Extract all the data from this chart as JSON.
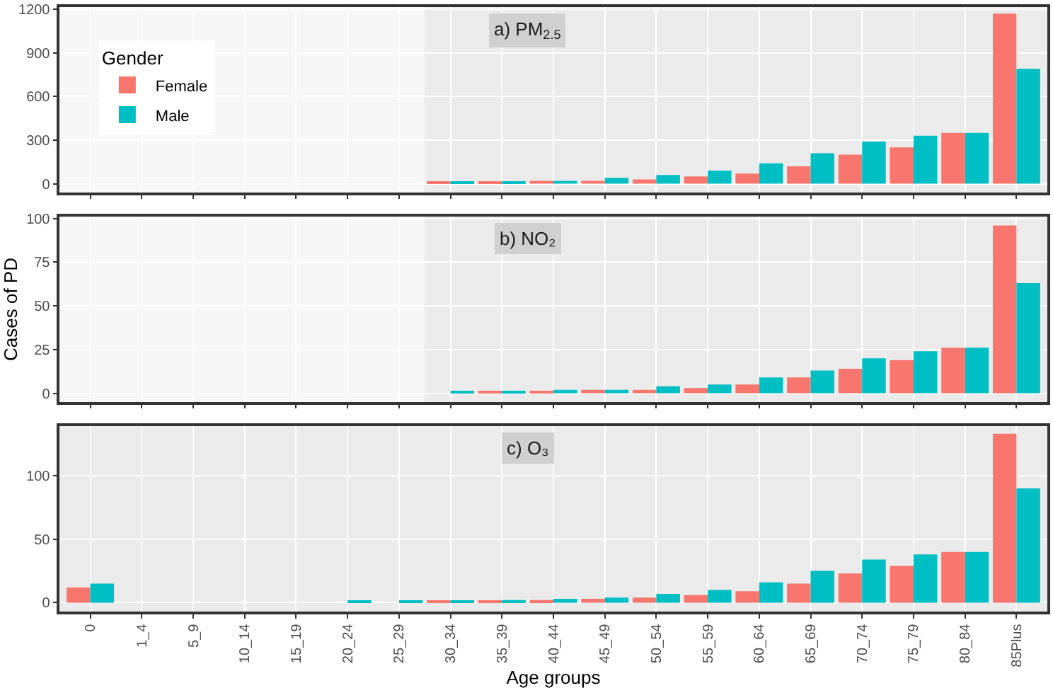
{
  "chart_data": [
    {
      "type": "bar",
      "title": "a) PM$_{2.5}$",
      "categories": [
        "0",
        "1_4",
        "5_9",
        "10_14",
        "15_19",
        "20_24",
        "25_29",
        "30_34",
        "35_39",
        "40_44",
        "45_49",
        "50_54",
        "55_59",
        "60_64",
        "65_69",
        "70_74",
        "75_79",
        "80_84",
        "85Plus"
      ],
      "legend_title": "Gender",
      "legend": "left",
      "grid": true,
      "tick_labels": "y",
      "ylim": [
        -60,
        1215
      ],
      "yticks": [
        0,
        300,
        600,
        900,
        1200
      ],
      "bands": [
        {
          "axis": "x",
          "from": "0",
          "to": "25_29",
          "color": "#f7f7f7"
        }
      ],
      "series": [
        {
          "name": "Female",
          "color": "#f8766d",
          "values": [
            null,
            null,
            null,
            null,
            null,
            null,
            null,
            10,
            10,
            20,
            20,
            30,
            50,
            70,
            120,
            200,
            250,
            350,
            1170
          ]
        },
        {
          "name": "Male",
          "color": "#00bfc4",
          "values": [
            null,
            null,
            null,
            null,
            null,
            null,
            null,
            10,
            10,
            20,
            40,
            60,
            90,
            140,
            210,
            290,
            330,
            350,
            790
          ]
        }
      ]
    },
    {
      "type": "bar",
      "title": "b) NO₂",
      "ylabel": "Cases of PD",
      "categories": [
        "0",
        "1_4",
        "5_9",
        "10_14",
        "15_19",
        "20_24",
        "25_29",
        "30_34",
        "35_39",
        "40_44",
        "45_49",
        "50_54",
        "55_59",
        "60_64",
        "65_69",
        "70_74",
        "75_79",
        "80_84",
        "85Plus"
      ],
      "grid": true,
      "tick_labels": "y",
      "ylim": [
        -5,
        101
      ],
      "yticks": [
        0,
        25,
        50,
        75,
        100
      ],
      "bands": [
        {
          "axis": "x",
          "from": "0",
          "to": "25_29",
          "color": "#f7f7f7"
        }
      ],
      "series": [
        {
          "color": "#f8766d",
          "values": [
            null,
            null,
            null,
            null,
            null,
            null,
            null,
            0,
            1,
            1,
            2,
            2,
            3,
            5,
            9,
            14,
            19,
            26,
            96
          ]
        },
        {
          "color": "#00bfc4",
          "values": [
            null,
            null,
            null,
            null,
            null,
            null,
            null,
            1,
            1,
            2,
            2,
            4,
            5,
            9,
            13,
            20,
            24,
            26,
            63
          ]
        }
      ]
    },
    {
      "type": "bar",
      "title": "c) O₃",
      "xlabel": "Age groups",
      "categories": [
        "0",
        "1_4",
        "5_9",
        "10_14",
        "15_19",
        "20_24",
        "25_29",
        "30_34",
        "35_39",
        "40_44",
        "45_49",
        "50_54",
        "55_59",
        "60_64",
        "65_69",
        "70_74",
        "75_79",
        "80_84",
        "85Plus"
      ],
      "grid": true,
      "ylim": [
        -7,
        139
      ],
      "yticks": [
        0,
        50,
        100
      ],
      "series": [
        {
          "color": "#f8766d",
          "values": [
            12,
            null,
            null,
            null,
            null,
            null,
            null,
            1,
            1,
            2,
            3,
            4,
            6,
            9,
            15,
            23,
            29,
            40,
            133
          ]
        },
        {
          "color": "#00bfc4",
          "values": [
            15,
            null,
            null,
            null,
            null,
            1,
            1,
            1,
            2,
            3,
            4,
            7,
            10,
            16,
            25,
            34,
            38,
            40,
            90
          ]
        }
      ]
    }
  ]
}
